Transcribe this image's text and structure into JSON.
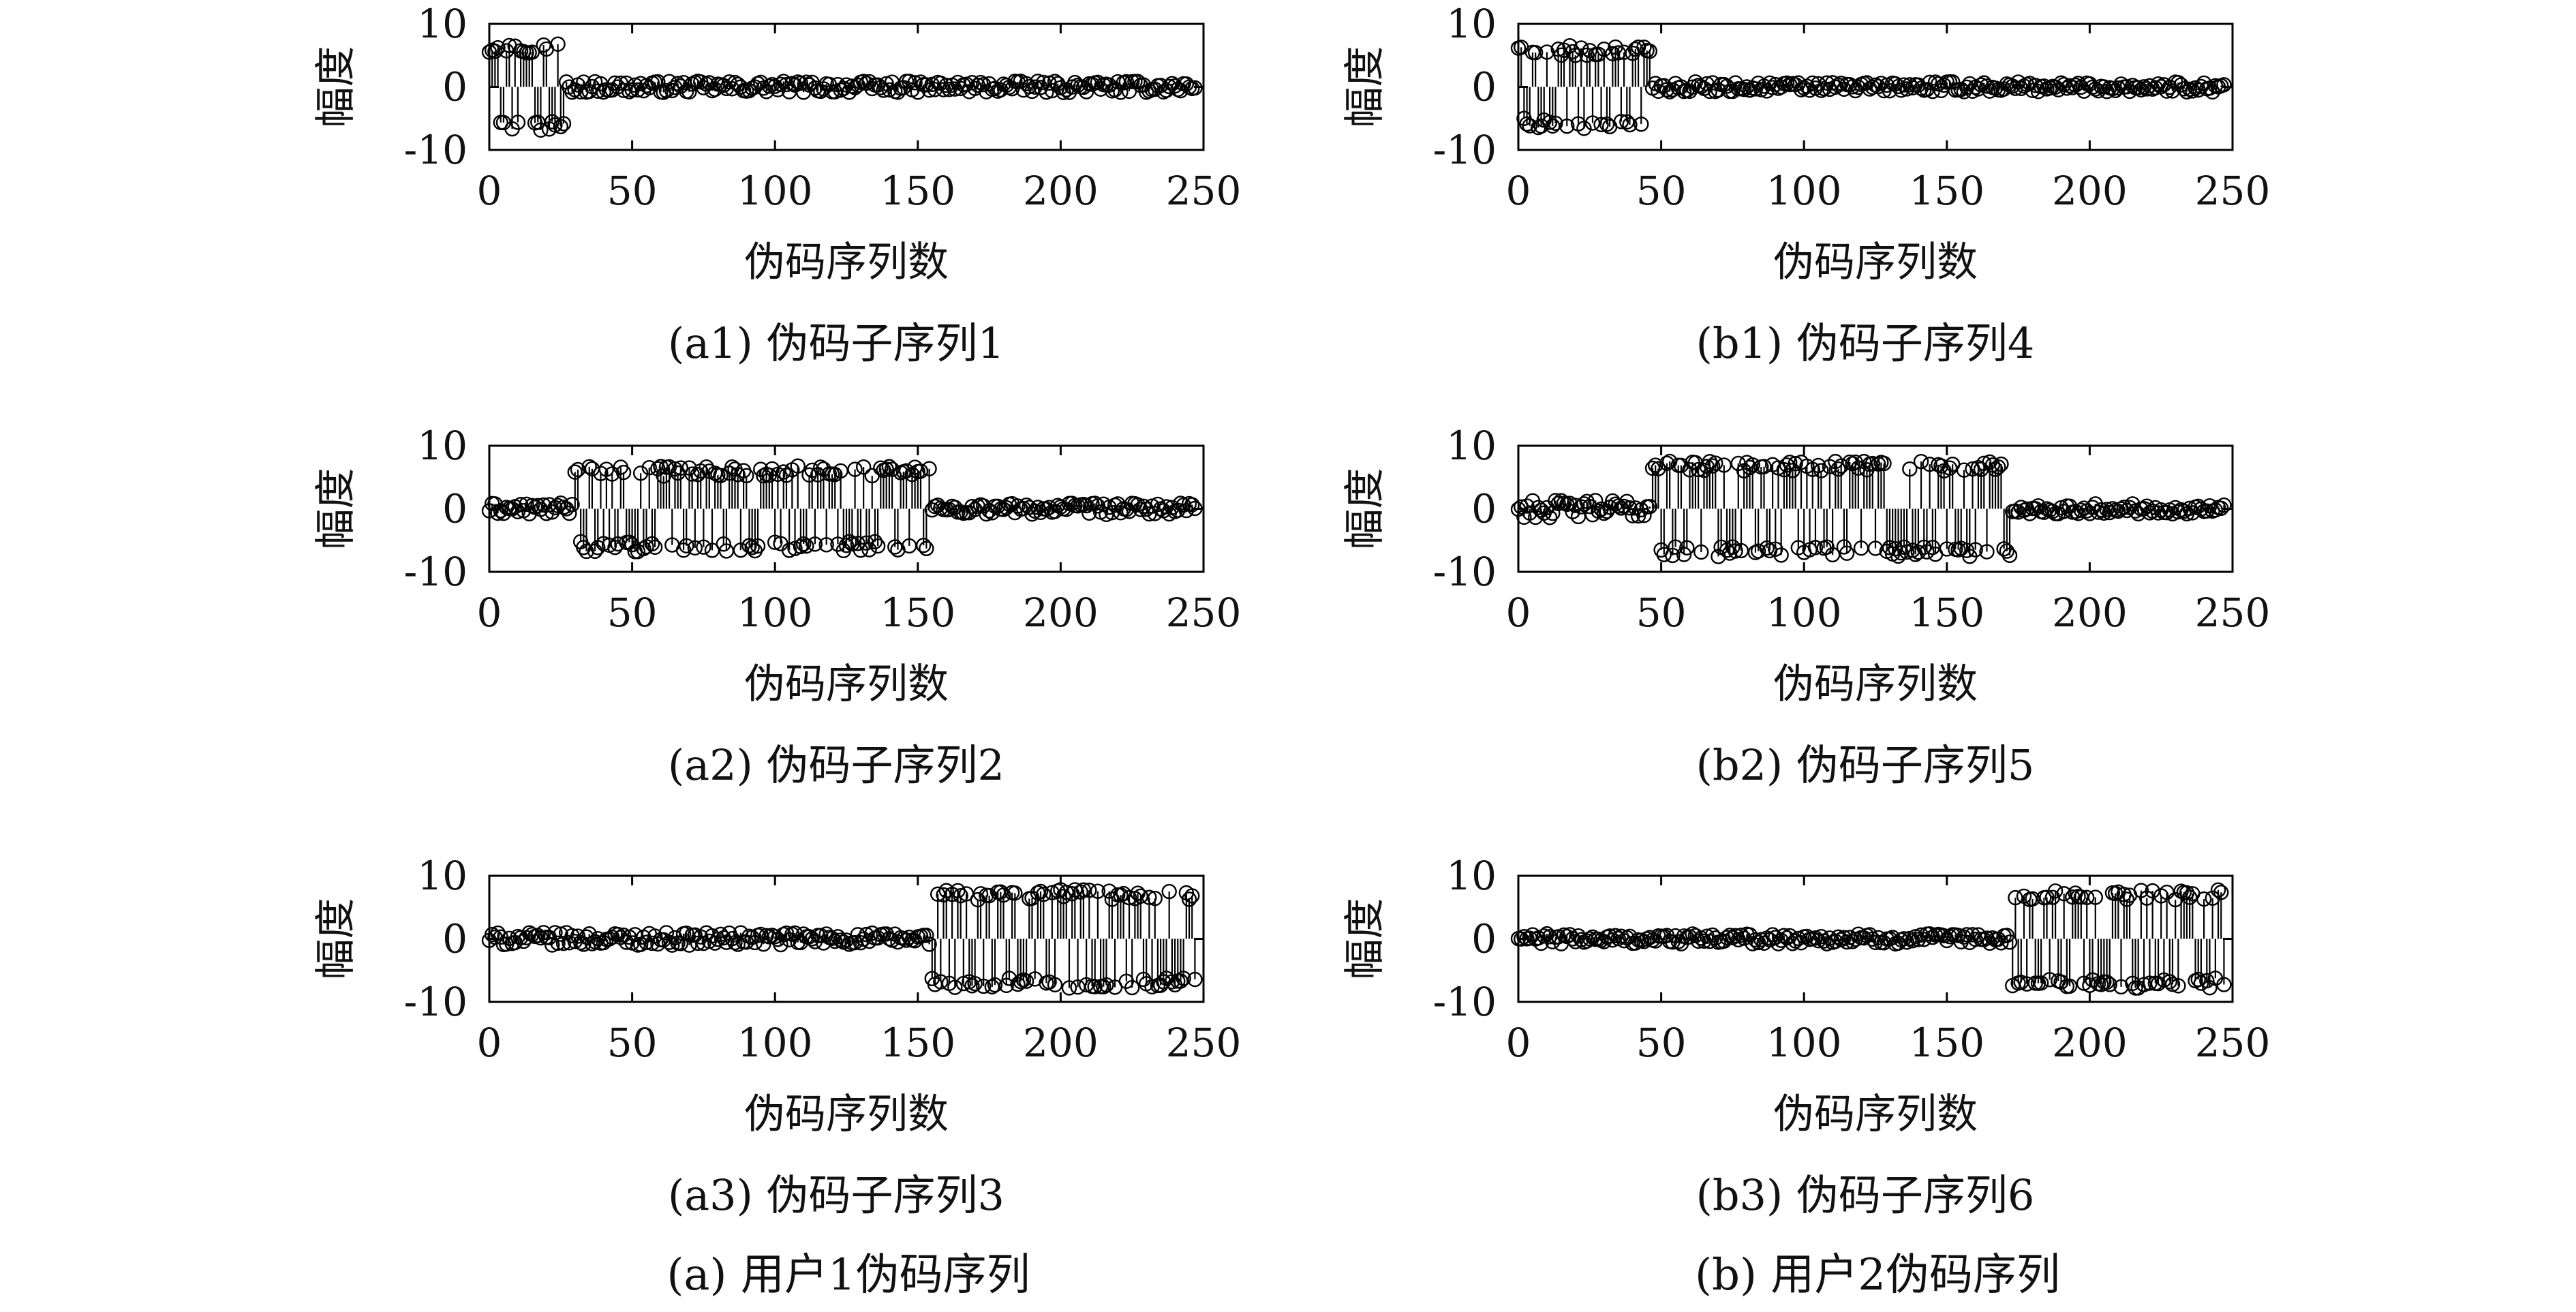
{
  "figure": {
    "group_captions": [
      "(a) 用户1伪码序列",
      "(b) 用户2伪码序列"
    ]
  },
  "chart_data": [
    {
      "type": "stem",
      "panel": "a1",
      "caption": "(a1) 伪码子序列1",
      "xlabel": "伪码序列数",
      "ylabel": "幅度",
      "xlim": [
        0,
        250
      ],
      "ylim": [
        -10,
        10
      ],
      "xticks": [
        0,
        50,
        100,
        150,
        200,
        250
      ],
      "yticks": [
        10,
        0,
        -10
      ],
      "n_points": 248,
      "marker": "open-circle",
      "segments": [
        {
          "x_range": [
            0,
            26
          ],
          "pattern": "alternating",
          "amplitude": 6.2
        },
        {
          "x_range": [
            27,
            247
          ],
          "pattern": "noise",
          "amplitude": 0.9
        }
      ]
    },
    {
      "type": "stem",
      "panel": "a2",
      "caption": "(a2) 伪码子序列2",
      "xlabel": "伪码序列数",
      "ylabel": "幅度",
      "xlim": [
        0,
        250
      ],
      "ylim": [
        -10,
        10
      ],
      "xticks": [
        0,
        50,
        100,
        150,
        200,
        250
      ],
      "yticks": [
        10,
        0,
        -10
      ],
      "n_points": 248,
      "marker": "open-circle",
      "segments": [
        {
          "x_range": [
            0,
            29
          ],
          "pattern": "noise",
          "amplitude": 0.9
        },
        {
          "x_range": [
            30,
            154
          ],
          "pattern": "alternating",
          "amplitude": 6.0
        },
        {
          "x_range": [
            155,
            247
          ],
          "pattern": "noise",
          "amplitude": 0.9
        }
      ]
    },
    {
      "type": "stem",
      "panel": "a3",
      "caption": "(a3) 伪码子序列3",
      "xlabel": "伪码序列数",
      "ylabel": "幅度",
      "xlim": [
        0,
        250
      ],
      "ylim": [
        -10,
        10
      ],
      "xticks": [
        0,
        50,
        100,
        150,
        200,
        250
      ],
      "yticks": [
        10,
        0,
        -10
      ],
      "n_points": 248,
      "marker": "open-circle",
      "segments": [
        {
          "x_range": [
            0,
            154
          ],
          "pattern": "noise",
          "amplitude": 1.0
        },
        {
          "x_range": [
            155,
            247
          ],
          "pattern": "alternating",
          "amplitude": 7.0
        }
      ]
    },
    {
      "type": "stem",
      "panel": "b1",
      "caption": "(b1) 伪码子序列4",
      "xlabel": "伪码序列数",
      "ylabel": "幅度",
      "xlim": [
        0,
        250
      ],
      "ylim": [
        -10,
        10
      ],
      "xticks": [
        0,
        50,
        100,
        150,
        200,
        250
      ],
      "yticks": [
        10,
        0,
        -10
      ],
      "n_points": 248,
      "marker": "open-circle",
      "segments": [
        {
          "x_range": [
            0,
            46
          ],
          "pattern": "alternating",
          "amplitude": 5.8
        },
        {
          "x_range": [
            47,
            247
          ],
          "pattern": "noise",
          "amplitude": 0.8
        }
      ]
    },
    {
      "type": "stem",
      "panel": "b2",
      "caption": "(b2) 伪码子序列5",
      "xlabel": "伪码序列数",
      "ylabel": "幅度",
      "xlim": [
        0,
        250
      ],
      "ylim": [
        -10,
        10
      ],
      "xticks": [
        0,
        50,
        100,
        150,
        200,
        250
      ],
      "yticks": [
        10,
        0,
        -10
      ],
      "n_points": 248,
      "marker": "open-circle",
      "segments": [
        {
          "x_range": [
            0,
            46
          ],
          "pattern": "noise",
          "amplitude": 1.4
        },
        {
          "x_range": [
            47,
            172
          ],
          "pattern": "alternating",
          "amplitude": 6.8
        },
        {
          "x_range": [
            173,
            247
          ],
          "pattern": "noise",
          "amplitude": 0.8
        }
      ]
    },
    {
      "type": "stem",
      "panel": "b3",
      "caption": "(b3) 伪码子序列6",
      "xlabel": "伪码序列数",
      "ylabel": "幅度",
      "xlim": [
        0,
        250
      ],
      "ylim": [
        -10,
        10
      ],
      "xticks": [
        0,
        50,
        100,
        150,
        200,
        250
      ],
      "yticks": [
        10,
        0,
        -10
      ],
      "n_points": 248,
      "marker": "open-circle",
      "segments": [
        {
          "x_range": [
            0,
            172
          ],
          "pattern": "noise",
          "amplitude": 0.8
        },
        {
          "x_range": [
            173,
            247
          ],
          "pattern": "alternating",
          "amplitude": 7.0
        }
      ]
    }
  ]
}
